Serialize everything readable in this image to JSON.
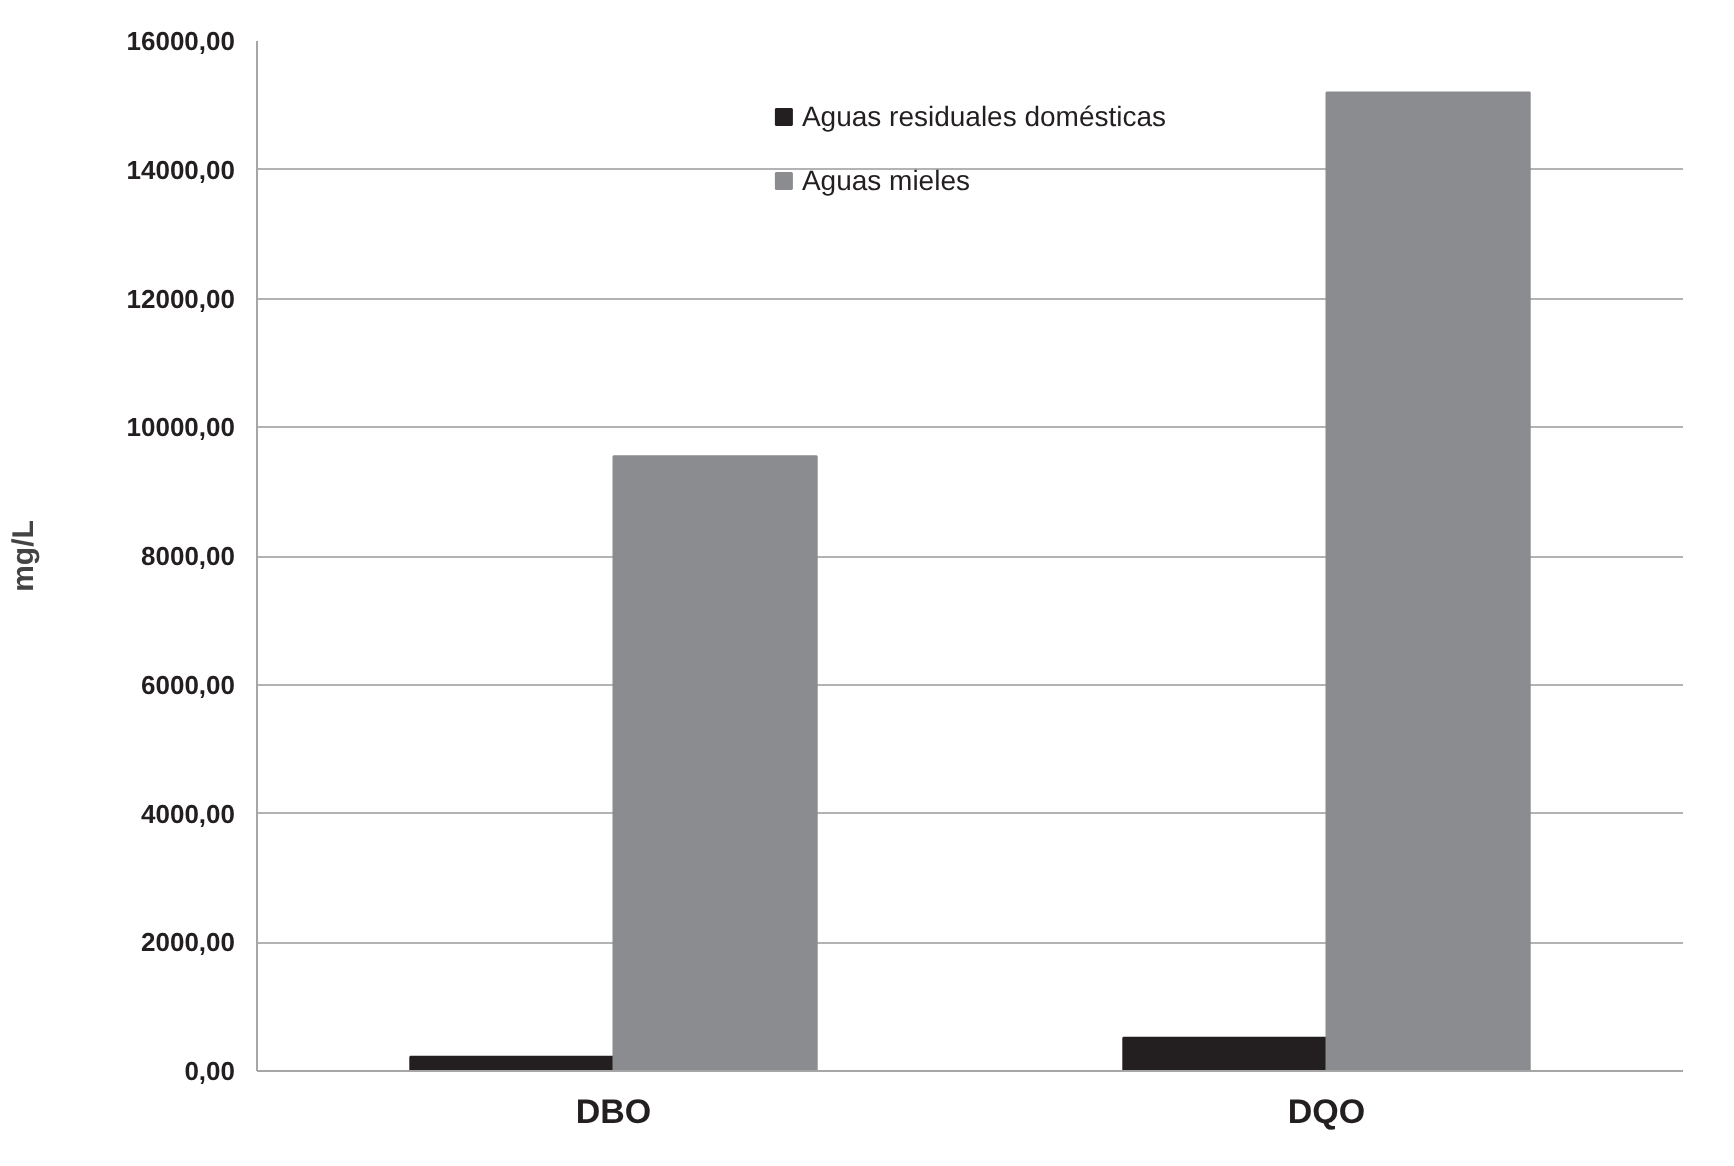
{
  "chart_data": {
    "type": "bar",
    "ylabel": "mg/L",
    "categories": [
      "DBO",
      "DQO"
    ],
    "series": [
      {
        "name": "Aguas residuales domésticas",
        "color": "#231f20",
        "values": [
          220,
          515
        ]
      },
      {
        "name": "Aguas mieles",
        "color": "#8a8c8f",
        "values": [
          9550,
          15200
        ]
      }
    ],
    "ylim": [
      0,
      16000
    ],
    "yticks": [
      {
        "value": 0,
        "label": "0,00"
      },
      {
        "value": 2000,
        "label": "2000,00"
      },
      {
        "value": 4000,
        "label": "4000,00"
      },
      {
        "value": 6000,
        "label": "6000,00"
      },
      {
        "value": 8000,
        "label": "8000,00"
      },
      {
        "value": 10000,
        "label": "10000,00"
      },
      {
        "value": 12000,
        "label": "12000,00"
      },
      {
        "value": 14000,
        "label": "14000,00"
      },
      {
        "value": 16000,
        "label": "16000,00"
      }
    ],
    "grid": "y",
    "legend": "top"
  }
}
